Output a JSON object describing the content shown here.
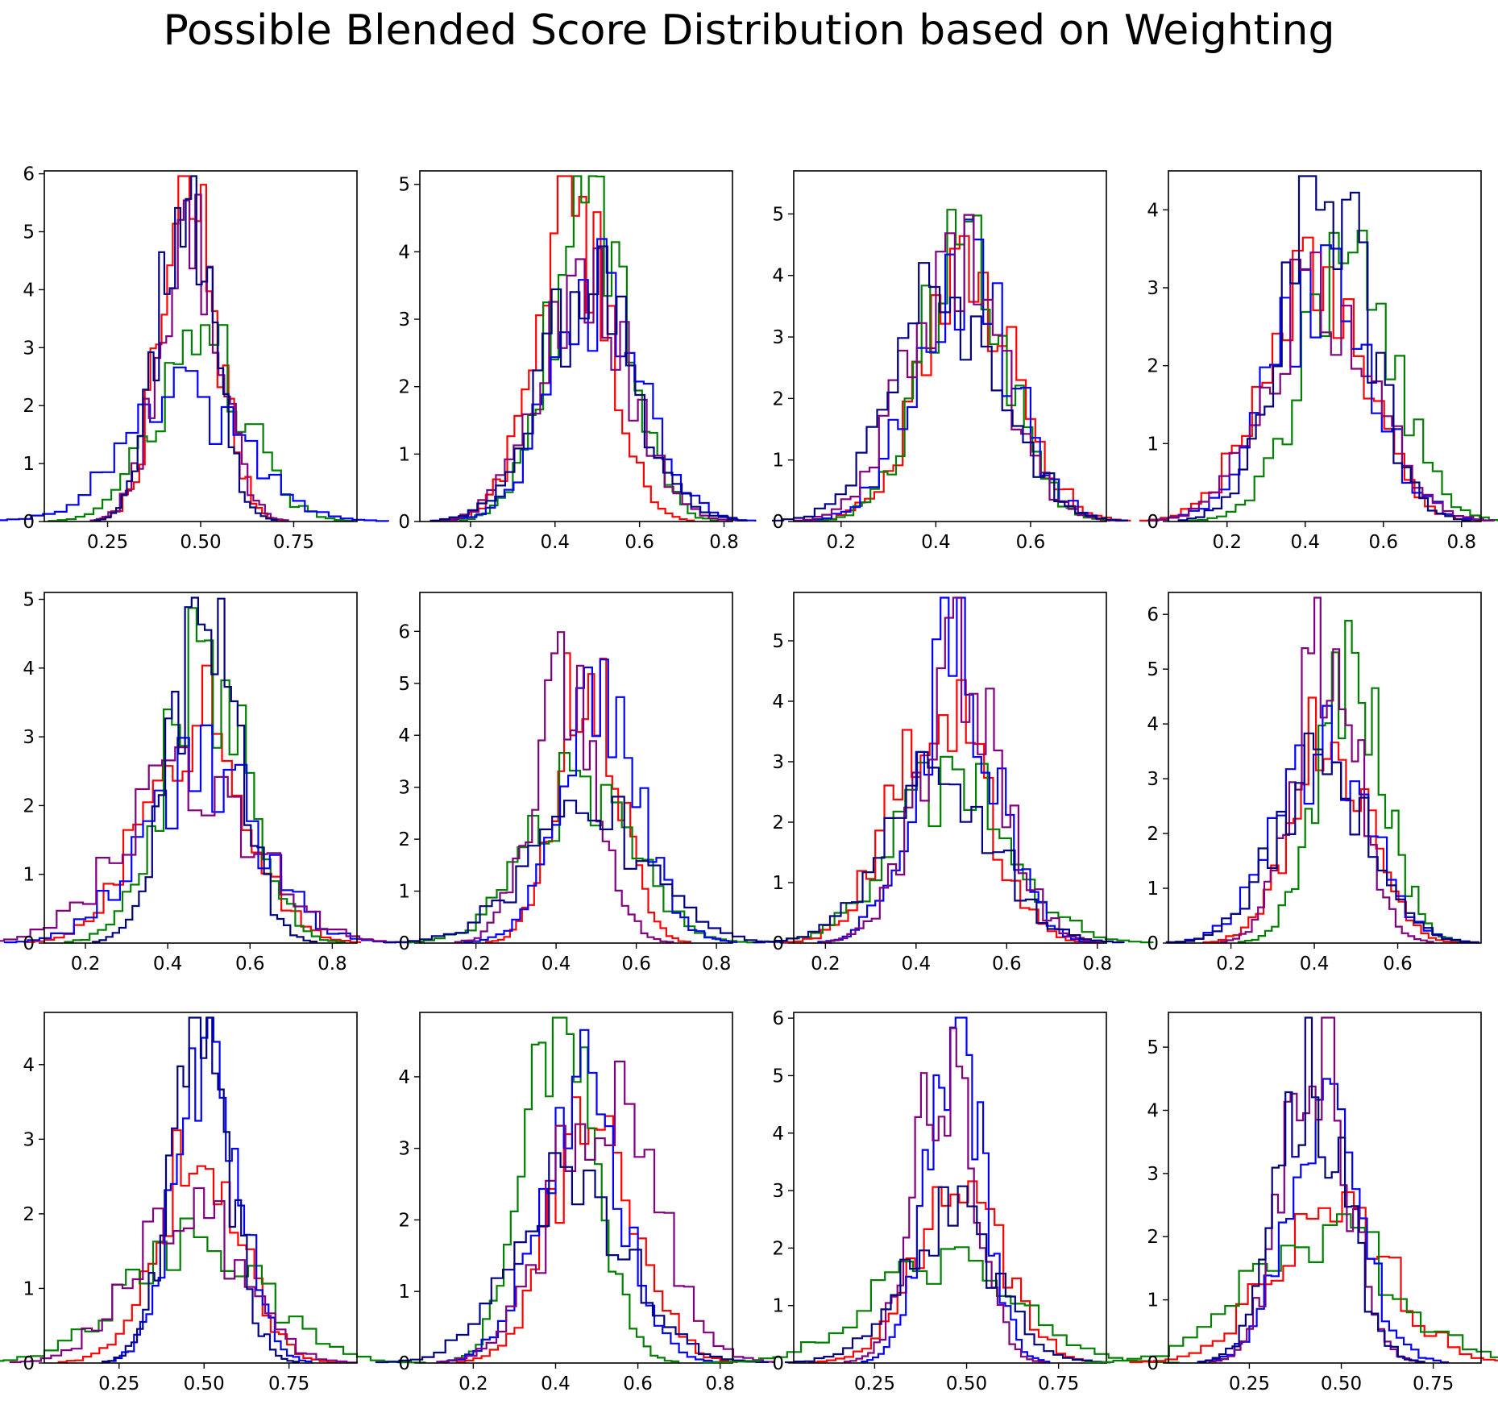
{
  "figure": {
    "title": "Possible Blended Score Distribution based on Weighting"
  },
  "series_colors": [
    "#ff0000",
    "#008000",
    "#0000ff",
    "#800080",
    "#000080"
  ],
  "chart_data": [
    {
      "type": "histogram-step",
      "xlim": [
        0.08,
        0.92
      ],
      "ylim": [
        0,
        6.05
      ],
      "xticks": [
        0.25,
        0.5,
        0.75
      ],
      "xtick_labels": [
        "0.25",
        "0.50",
        "0.75"
      ],
      "yticks": [
        0,
        1,
        2,
        3,
        4,
        5,
        6
      ],
      "series": [
        {
          "color": "#ff0000",
          "mean": 0.47,
          "sd": 0.075,
          "peak": 5.5
        },
        {
          "color": "#008000",
          "mean": 0.5,
          "sd": 0.12,
          "peak": 3.1
        },
        {
          "color": "#0000ff",
          "mean": 0.46,
          "sd": 0.16,
          "peak": 2.1
        },
        {
          "color": "#800080",
          "mean": 0.47,
          "sd": 0.078,
          "peak": 5.3
        },
        {
          "color": "#000080",
          "mean": 0.46,
          "sd": 0.072,
          "peak": 5.75
        }
      ]
    },
    {
      "type": "histogram-step",
      "xlim": [
        0.08,
        0.82
      ],
      "ylim": [
        0,
        5.2
      ],
      "xticks": [
        0.2,
        0.4,
        0.6,
        0.8
      ],
      "xtick_labels": [
        "0.2",
        "0.4",
        "0.6",
        "0.8"
      ],
      "yticks": [
        0,
        1,
        2,
        3,
        4,
        5
      ],
      "series": [
        {
          "color": "#ff0000",
          "mean": 0.44,
          "sd": 0.085,
          "peak": 4.8
        },
        {
          "color": "#008000",
          "mean": 0.48,
          "sd": 0.09,
          "peak": 4.9
        },
        {
          "color": "#0000ff",
          "mean": 0.5,
          "sd": 0.11,
          "peak": 3.4
        },
        {
          "color": "#800080",
          "mean": 0.47,
          "sd": 0.105,
          "peak": 3.6
        },
        {
          "color": "#000080",
          "mean": 0.48,
          "sd": 0.11,
          "peak": 3.5
        }
      ]
    },
    {
      "type": "histogram-step",
      "xlim": [
        0.1,
        0.76
      ],
      "ylim": [
        0,
        5.7
      ],
      "xticks": [
        0.2,
        0.4,
        0.6
      ],
      "xtick_labels": [
        "0.2",
        "0.4",
        "0.6"
      ],
      "yticks": [
        0,
        1,
        2,
        3,
        4,
        5
      ],
      "series": [
        {
          "color": "#ff0000",
          "mean": 0.47,
          "sd": 0.1,
          "peak": 3.8
        },
        {
          "color": "#008000",
          "mean": 0.46,
          "sd": 0.09,
          "peak": 4.5
        },
        {
          "color": "#0000ff",
          "mean": 0.46,
          "sd": 0.1,
          "peak": 4.0
        },
        {
          "color": "#800080",
          "mean": 0.44,
          "sd": 0.1,
          "peak": 4.2
        },
        {
          "color": "#000080",
          "mean": 0.43,
          "sd": 0.11,
          "peak": 3.8
        }
      ]
    },
    {
      "type": "histogram-step",
      "xlim": [
        0.05,
        0.85
      ],
      "ylim": [
        0,
        4.5
      ],
      "xticks": [
        0.2,
        0.4,
        0.6,
        0.8
      ],
      "xtick_labels": [
        "0.2",
        "0.4",
        "0.6",
        "0.8"
      ],
      "yticks": [
        0,
        1,
        2,
        3,
        4
      ],
      "series": [
        {
          "color": "#ff0000",
          "mean": 0.42,
          "sd": 0.13,
          "peak": 2.9
        },
        {
          "color": "#008000",
          "mean": 0.51,
          "sd": 0.12,
          "peak": 3.2
        },
        {
          "color": "#0000ff",
          "mean": 0.44,
          "sd": 0.13,
          "peak": 2.9
        },
        {
          "color": "#800080",
          "mean": 0.44,
          "sd": 0.13,
          "peak": 3.0
        },
        {
          "color": "#000080",
          "mean": 0.45,
          "sd": 0.11,
          "peak": 4.3
        }
      ]
    },
    {
      "type": "histogram-step",
      "xlim": [
        0.1,
        0.86
      ],
      "ylim": [
        0,
        5.1
      ],
      "xticks": [
        0.2,
        0.4,
        0.6,
        0.8
      ],
      "xtick_labels": [
        "0.2",
        "0.4",
        "0.6",
        "0.8"
      ],
      "yticks": [
        0,
        1,
        2,
        3,
        4,
        5
      ],
      "series": [
        {
          "color": "#ff0000",
          "mean": 0.46,
          "sd": 0.12,
          "peak": 3.4
        },
        {
          "color": "#008000",
          "mean": 0.49,
          "sd": 0.1,
          "peak": 4.1
        },
        {
          "color": "#0000ff",
          "mean": 0.48,
          "sd": 0.14,
          "peak": 2.6
        },
        {
          "color": "#800080",
          "mean": 0.45,
          "sd": 0.16,
          "peak": 2.4
        },
        {
          "color": "#000080",
          "mean": 0.49,
          "sd": 0.08,
          "peak": 4.8
        }
      ]
    },
    {
      "type": "histogram-step",
      "xlim": [
        0.06,
        0.84
      ],
      "ylim": [
        0,
        6.75
      ],
      "xticks": [
        0.2,
        0.4,
        0.6,
        0.8
      ],
      "xtick_labels": [
        "0.2",
        "0.4",
        "0.6",
        "0.8"
      ],
      "yticks": [
        0,
        1,
        2,
        3,
        4,
        5,
        6
      ],
      "series": [
        {
          "color": "#ff0000",
          "mean": 0.48,
          "sd": 0.075,
          "peak": 5.6
        },
        {
          "color": "#008000",
          "mean": 0.46,
          "sd": 0.13,
          "peak": 3.0
        },
        {
          "color": "#0000ff",
          "mean": 0.51,
          "sd": 0.1,
          "peak": 4.5
        },
        {
          "color": "#800080",
          "mean": 0.42,
          "sd": 0.08,
          "peak": 4.9
        },
        {
          "color": "#000080",
          "mean": 0.48,
          "sd": 0.15,
          "peak": 2.5
        }
      ]
    },
    {
      "type": "histogram-step",
      "xlim": [
        0.13,
        0.82
      ],
      "ylim": [
        0,
        5.8
      ],
      "xticks": [
        0.2,
        0.4,
        0.6,
        0.8
      ],
      "xtick_labels": [
        "0.2",
        "0.4",
        "0.6",
        "0.8"
      ],
      "yticks": [
        0,
        1,
        2,
        3,
        4,
        5
      ],
      "series": [
        {
          "color": "#ff0000",
          "mean": 0.45,
          "sd": 0.1,
          "peak": 4.1
        },
        {
          "color": "#008000",
          "mean": 0.48,
          "sd": 0.13,
          "peak": 2.7
        },
        {
          "color": "#0000ff",
          "mean": 0.49,
          "sd": 0.09,
          "peak": 4.8
        },
        {
          "color": "#800080",
          "mean": 0.5,
          "sd": 0.09,
          "peak": 4.6
        },
        {
          "color": "#000080",
          "mean": 0.45,
          "sd": 0.12,
          "peak": 2.8
        }
      ]
    },
    {
      "type": "histogram-step",
      "xlim": [
        0.05,
        0.8
      ],
      "ylim": [
        0,
        6.4
      ],
      "xticks": [
        0.2,
        0.4,
        0.6
      ],
      "xtick_labels": [
        "0.2",
        "0.4",
        "0.6"
      ],
      "yticks": [
        0,
        1,
        2,
        3,
        4,
        5,
        6
      ],
      "series": [
        {
          "color": "#ff0000",
          "mean": 0.44,
          "sd": 0.09,
          "peak": 4.0
        },
        {
          "color": "#008000",
          "mean": 0.49,
          "sd": 0.08,
          "peak": 5.0
        },
        {
          "color": "#0000ff",
          "mean": 0.42,
          "sd": 0.11,
          "peak": 3.6
        },
        {
          "color": "#800080",
          "mean": 0.43,
          "sd": 0.075,
          "peak": 5.6
        },
        {
          "color": "#000080",
          "mean": 0.42,
          "sd": 0.11,
          "peak": 3.3
        }
      ]
    },
    {
      "type": "histogram-step",
      "xlim": [
        0.03,
        0.95
      ],
      "ylim": [
        0,
        4.7
      ],
      "xticks": [
        0.25,
        0.5,
        0.75
      ],
      "xtick_labels": [
        "0.25",
        "0.50",
        "0.75"
      ],
      "yticks": [
        0,
        1,
        2,
        3,
        4
      ],
      "series": [
        {
          "color": "#ff0000",
          "mean": 0.48,
          "sd": 0.12,
          "peak": 2.9
        },
        {
          "color": "#008000",
          "mean": 0.47,
          "sd": 0.2,
          "peak": 1.6
        },
        {
          "color": "#0000ff",
          "mean": 0.51,
          "sd": 0.09,
          "peak": 4.4
        },
        {
          "color": "#800080",
          "mean": 0.44,
          "sd": 0.15,
          "peak": 2.3
        },
        {
          "color": "#000080",
          "mean": 0.49,
          "sd": 0.085,
          "peak": 4.4
        }
      ]
    },
    {
      "type": "histogram-step",
      "xlim": [
        0.07,
        0.83
      ],
      "ylim": [
        0,
        4.9
      ],
      "xticks": [
        0.2,
        0.4,
        0.6,
        0.8
      ],
      "xtick_labels": [
        "0.2",
        "0.4",
        "0.6",
        "0.8"
      ],
      "yticks": [
        0,
        1,
        2,
        3,
        4
      ],
      "series": [
        {
          "color": "#ff0000",
          "mean": 0.5,
          "sd": 0.1,
          "peak": 3.6
        },
        {
          "color": "#008000",
          "mean": 0.41,
          "sd": 0.085,
          "peak": 4.6
        },
        {
          "color": "#0000ff",
          "mean": 0.46,
          "sd": 0.1,
          "peak": 3.9
        },
        {
          "color": "#800080",
          "mean": 0.52,
          "sd": 0.12,
          "peak": 3.9
        },
        {
          "color": "#000080",
          "mean": 0.44,
          "sd": 0.14,
          "peak": 2.4
        }
      ]
    },
    {
      "type": "histogram-step",
      "xlim": [
        0.03,
        0.88
      ],
      "ylim": [
        0,
        6.1
      ],
      "xticks": [
        0.25,
        0.5,
        0.75
      ],
      "xtick_labels": [
        "0.25",
        "0.50",
        "0.75"
      ],
      "yticks": [
        0,
        1,
        2,
        3,
        4,
        5,
        6
      ],
      "series": [
        {
          "color": "#ff0000",
          "mean": 0.48,
          "sd": 0.12,
          "peak": 3.1
        },
        {
          "color": "#008000",
          "mean": 0.43,
          "sd": 0.19,
          "peak": 1.9
        },
        {
          "color": "#0000ff",
          "mean": 0.47,
          "sd": 0.075,
          "peak": 5.5
        },
        {
          "color": "#800080",
          "mean": 0.44,
          "sd": 0.08,
          "peak": 5.1
        },
        {
          "color": "#000080",
          "mean": 0.45,
          "sd": 0.13,
          "peak": 2.6
        }
      ]
    },
    {
      "type": "histogram-step",
      "xlim": [
        0.03,
        0.88
      ],
      "ylim": [
        0,
        5.55
      ],
      "xticks": [
        0.25,
        0.5,
        0.75
      ],
      "xtick_labels": [
        "0.25",
        "0.50",
        "0.75"
      ],
      "yticks": [
        0,
        1,
        2,
        3,
        4,
        5
      ],
      "series": [
        {
          "color": "#ff0000",
          "mean": 0.47,
          "sd": 0.16,
          "peak": 2.5
        },
        {
          "color": "#008000",
          "mean": 0.45,
          "sd": 0.19,
          "peak": 2.1
        },
        {
          "color": "#0000ff",
          "mean": 0.45,
          "sd": 0.1,
          "peak": 3.8
        },
        {
          "color": "#800080",
          "mean": 0.43,
          "sd": 0.085,
          "peak": 5.0
        },
        {
          "color": "#000080",
          "mean": 0.42,
          "sd": 0.09,
          "peak": 4.6
        }
      ]
    }
  ]
}
